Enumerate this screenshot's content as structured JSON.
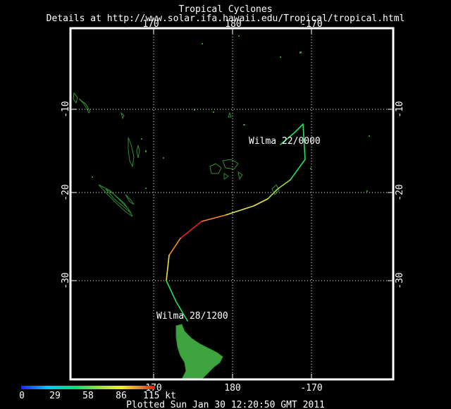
{
  "header": {
    "title": "Tropical Cyclones",
    "details": "Details at http://www.solar.ifa.hawaii.edu/Tropical/tropical.html"
  },
  "axes": {
    "lon_labels": [
      "170",
      "180",
      "-170"
    ],
    "lat_labels": [
      "-10",
      "-20",
      "-30"
    ]
  },
  "storm": {
    "name": "Wilma",
    "label_start": "Wilma  22/0000",
    "label_end": "Wilma  28/1200",
    "colors": {
      "low": "#22dd66",
      "mid": "#e6e63a",
      "high": "#e82020",
      "orange": "#f08a20",
      "land": "#3fa33f",
      "land_outline": "#2f8f2f"
    }
  },
  "legend": {
    "ticks": [
      "0",
      "29",
      "58",
      "86",
      "115 kt"
    ]
  },
  "footer": {
    "plotted": "Plotted Sun Jan 30 12:20:50 GMT 2011"
  }
}
